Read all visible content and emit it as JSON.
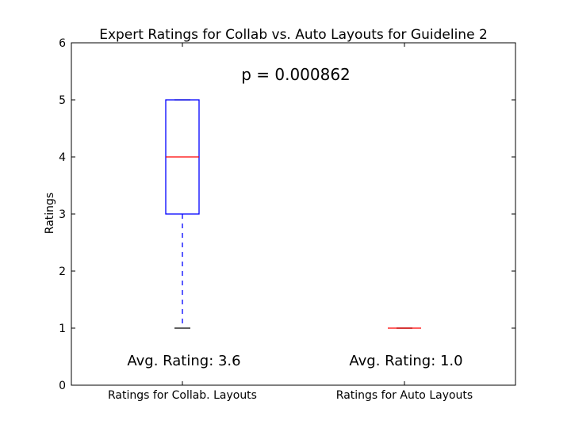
{
  "chart_data": {
    "type": "box",
    "title": "Expert Ratings for Collab vs. Auto Layouts for Guideline 2",
    "ylabel": "Ratings",
    "xlabel": "",
    "ylim": [
      0,
      6
    ],
    "yticks": [
      "0",
      "1",
      "2",
      "3",
      "4",
      "5",
      "6"
    ],
    "categories": [
      "Ratings for Collab. Layouts",
      "Ratings for Auto Layouts"
    ],
    "boxes": [
      {
        "whisker_low": 1,
        "q1": 3,
        "median": 4,
        "q3": 5,
        "whisker_high": 5
      },
      {
        "whisker_low": 1,
        "q1": 1,
        "median": 1,
        "q3": 1,
        "whisker_high": 1
      }
    ],
    "annotations": {
      "p_value": "p = 0.000862",
      "averages": [
        "Avg. Rating: 3.6",
        "Avg. Rating: 1.0"
      ]
    },
    "colors": {
      "box": "#0000ff",
      "median": "#ff0000",
      "cap": "#000000",
      "axis": "#000000"
    }
  }
}
